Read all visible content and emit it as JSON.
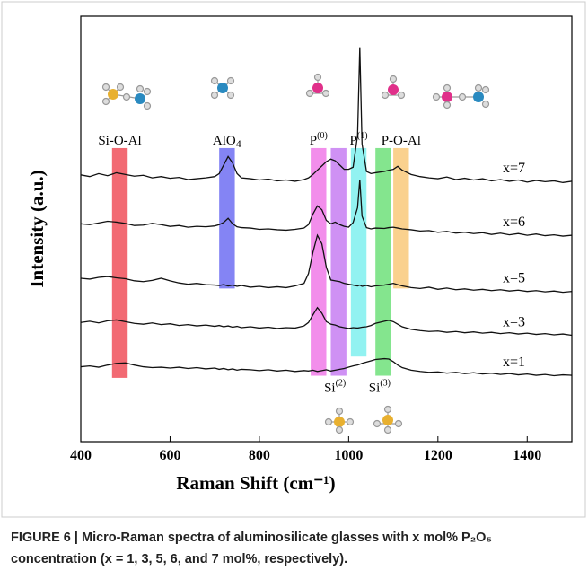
{
  "chart_data": {
    "type": "line",
    "xlabel": "Raman Shift (cm⁻¹)",
    "ylabel": "Intensity (a.u.)",
    "xlim": [
      400,
      1500
    ],
    "xticks": [
      400,
      600,
      800,
      1000,
      1200,
      1400
    ],
    "ylim": [
      0,
      100
    ],
    "x": [
      400,
      420,
      440,
      460,
      480,
      500,
      520,
      540,
      560,
      580,
      600,
      620,
      640,
      660,
      680,
      700,
      710,
      720,
      730,
      740,
      750,
      760,
      780,
      800,
      820,
      840,
      860,
      880,
      900,
      910,
      920,
      930,
      940,
      950,
      960,
      970,
      980,
      990,
      1000,
      1010,
      1020,
      1025,
      1030,
      1040,
      1050,
      1060,
      1080,
      1090,
      1100,
      1110,
      1120,
      1140,
      1160,
      1180,
      1200,
      1220,
      1240,
      1260,
      1280,
      1300,
      1320,
      1340,
      1360,
      1380,
      1400,
      1420,
      1440,
      1460,
      1480,
      1500
    ],
    "series": [
      {
        "name": "x=7",
        "color": "#111111",
        "values": [
          62.7,
          62.3,
          63.0,
          62.5,
          63.2,
          62.8,
          62.4,
          62.6,
          62.0,
          62.3,
          61.9,
          62.1,
          61.6,
          61.8,
          62.0,
          62.3,
          63.0,
          65.0,
          67.0,
          65.5,
          63.0,
          62.0,
          61.8,
          61.5,
          61.7,
          61.3,
          61.5,
          61.2,
          61.6,
          62.0,
          62.8,
          63.8,
          64.8,
          65.8,
          66.4,
          66.0,
          65.0,
          64.0,
          64.0,
          64.5,
          72.0,
          92.7,
          70.0,
          63.5,
          63.0,
          63.2,
          63.5,
          63.8,
          64.0,
          64.7,
          63.8,
          62.8,
          62.3,
          62.0,
          61.8,
          62.2,
          61.6,
          61.9,
          61.5,
          61.8,
          61.3,
          61.6,
          61.2,
          61.5,
          61.0,
          61.4,
          61.1,
          61.3,
          60.9,
          61.2
        ]
      },
      {
        "name": "x=6",
        "color": "#111111",
        "values": [
          51.2,
          51.0,
          51.4,
          51.8,
          51.6,
          51.3,
          50.8,
          50.9,
          51.3,
          51.0,
          50.6,
          50.8,
          50.4,
          50.6,
          50.5,
          50.7,
          51.0,
          51.5,
          52.5,
          51.2,
          50.5,
          50.3,
          50.2,
          49.9,
          50.0,
          49.8,
          49.7,
          49.9,
          50.2,
          51.0,
          53.5,
          55.4,
          54.5,
          52.0,
          51.2,
          51.6,
          51.0,
          50.6,
          50.4,
          51.5,
          55.0,
          61.6,
          53.0,
          50.3,
          50.0,
          50.2,
          50.1,
          50.3,
          50.4,
          50.2,
          50.0,
          49.8,
          49.5,
          49.6,
          49.2,
          49.4,
          49.0,
          49.2,
          48.9,
          49.1,
          48.7,
          49.0,
          48.6,
          48.9,
          48.5,
          48.8,
          48.4,
          48.6,
          48.3,
          48.5
        ]
      },
      {
        "name": "x=5",
        "color": "#111111",
        "values": [
          38.4,
          38.2,
          38.6,
          38.8,
          38.5,
          38.3,
          37.8,
          37.6,
          37.9,
          38.4,
          37.8,
          37.3,
          37.0,
          37.2,
          36.9,
          36.8,
          36.7,
          36.9,
          36.6,
          36.8,
          36.5,
          36.7,
          36.3,
          36.5,
          36.2,
          36.4,
          36.2,
          36.6,
          37.2,
          39.5,
          44.5,
          48.5,
          46.5,
          41.0,
          38.0,
          37.8,
          37.6,
          37.2,
          37.0,
          36.8,
          36.6,
          36.8,
          36.5,
          36.7,
          36.4,
          36.6,
          36.8,
          37.0,
          37.2,
          36.9,
          36.6,
          36.2,
          36.0,
          36.3,
          35.8,
          36.1,
          35.7,
          35.9,
          35.6,
          35.8,
          35.5,
          35.7,
          35.4,
          35.6,
          35.3,
          35.5,
          35.2,
          35.4,
          35.1,
          35.3
        ]
      },
      {
        "name": "x=3",
        "color": "#111111",
        "values": [
          28.0,
          28.3,
          27.9,
          28.4,
          28.6,
          28.2,
          27.8,
          27.6,
          27.9,
          27.5,
          27.7,
          27.3,
          27.5,
          27.2,
          27.4,
          27.1,
          27.3,
          27.0,
          27.2,
          26.9,
          27.1,
          26.8,
          27.0,
          26.7,
          26.9,
          26.6,
          26.8,
          26.7,
          27.2,
          28.0,
          29.8,
          31.5,
          30.2,
          28.2,
          27.6,
          27.4,
          27.0,
          26.8,
          26.6,
          26.8,
          26.7,
          26.8,
          26.9,
          27.0,
          27.3,
          27.8,
          28.3,
          28.5,
          28.2,
          27.6,
          27.0,
          26.4,
          26.1,
          25.9,
          26.0,
          25.7,
          25.9,
          25.6,
          25.8,
          25.5,
          25.7,
          25.4,
          25.6,
          25.3,
          25.5,
          25.2,
          25.4,
          25.1,
          25.3,
          25.0
        ]
      },
      {
        "name": "x=1",
        "color": "#111111",
        "values": [
          17.6,
          17.8,
          17.5,
          18.0,
          18.4,
          18.5,
          18.0,
          17.6,
          17.4,
          17.5,
          17.3,
          17.5,
          17.2,
          17.4,
          17.1,
          17.3,
          17.0,
          17.2,
          16.9,
          17.1,
          16.8,
          17.0,
          16.9,
          16.7,
          16.9,
          16.6,
          16.8,
          16.5,
          16.7,
          16.6,
          16.8,
          16.5,
          16.7,
          16.9,
          16.6,
          16.8,
          17.0,
          17.2,
          17.5,
          17.8,
          18.0,
          18.2,
          18.4,
          18.7,
          19.0,
          19.3,
          19.5,
          19.4,
          18.8,
          18.0,
          17.4,
          16.8,
          16.5,
          16.3,
          16.4,
          16.1,
          16.3,
          16.0,
          16.2,
          15.9,
          16.1,
          15.8,
          16.0,
          15.7,
          15.9,
          15.6,
          15.8,
          15.5,
          15.7,
          15.6
        ]
      }
    ],
    "upper_bands": [
      {
        "label": "Si-O-Al",
        "color": "#f0505a",
        "x": [
          470,
          505
        ],
        "y": [
          15,
          69
        ]
      },
      {
        "label": "AlO",
        "sub": "4",
        "color": "#6f6ff2",
        "x": [
          710,
          745
        ],
        "y": [
          36,
          69
        ]
      },
      {
        "label": "P",
        "sup": "(0)",
        "color": "#f07ae8",
        "x": [
          915,
          950
        ],
        "y": [
          15.5,
          69
        ]
      },
      {
        "label": "P",
        "sup": "(1)",
        "color": "#7ff0ee",
        "x": [
          1005,
          1040
        ],
        "y": [
          20,
          69
        ]
      },
      {
        "label": "P-O-Al",
        "color": "#f9c97a",
        "x": [
          1100,
          1135
        ],
        "y": [
          36,
          69
        ]
      }
    ],
    "lower_bands": [
      {
        "label": "Si",
        "sup": "(2)",
        "color": "#c77ef2",
        "x": [
          960,
          995
        ],
        "y": [
          15.5,
          69
        ]
      },
      {
        "label": "Si",
        "sup": "(3)",
        "color": "#6ee07a",
        "x": [
          1060,
          1095
        ],
        "y": [
          15.5,
          69
        ]
      }
    ]
  },
  "caption": "FIGURE 6 | Micro-Raman spectra of aluminosilicate glasses with x mol% P₂O₅ concentration (x = 1, 3, 5, 6, and 7 mol%, respectively)."
}
